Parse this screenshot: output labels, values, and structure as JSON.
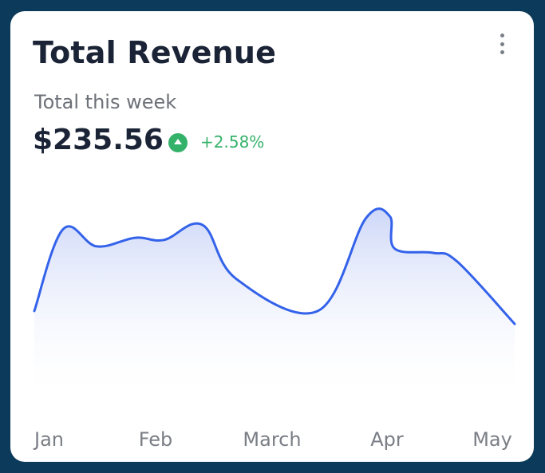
{
  "card": {
    "title": "Total Revenue",
    "subtitle": "Total this week",
    "amount": "$235.56",
    "change": "+2.58%",
    "change_icon": "arrow-up-circle-icon",
    "menu_icon": "more-vertical-icon"
  },
  "colors": {
    "line": "#3463ea",
    "fill_top": "#cdd7f8",
    "positive": "#34b26a",
    "frame": "#0b3a5a"
  },
  "chart_data": {
    "type": "area",
    "title": "",
    "xlabel": "",
    "ylabel": "",
    "categories": [
      "Jan",
      "Feb",
      "March",
      "Apr",
      "May"
    ],
    "x": [
      0,
      0.06,
      0.13,
      0.21,
      0.27,
      0.35,
      0.42,
      0.59,
      0.69,
      0.74,
      0.75,
      0.83,
      0.88,
      1.0
    ],
    "values": [
      0.43,
      0.81,
      0.73,
      0.77,
      0.76,
      0.83,
      0.58,
      0.43,
      0.86,
      0.87,
      0.72,
      0.7,
      0.66,
      0.37
    ],
    "xlim": [
      0,
      1
    ],
    "ylim": [
      0,
      1
    ],
    "grid": false,
    "legend": "none"
  }
}
